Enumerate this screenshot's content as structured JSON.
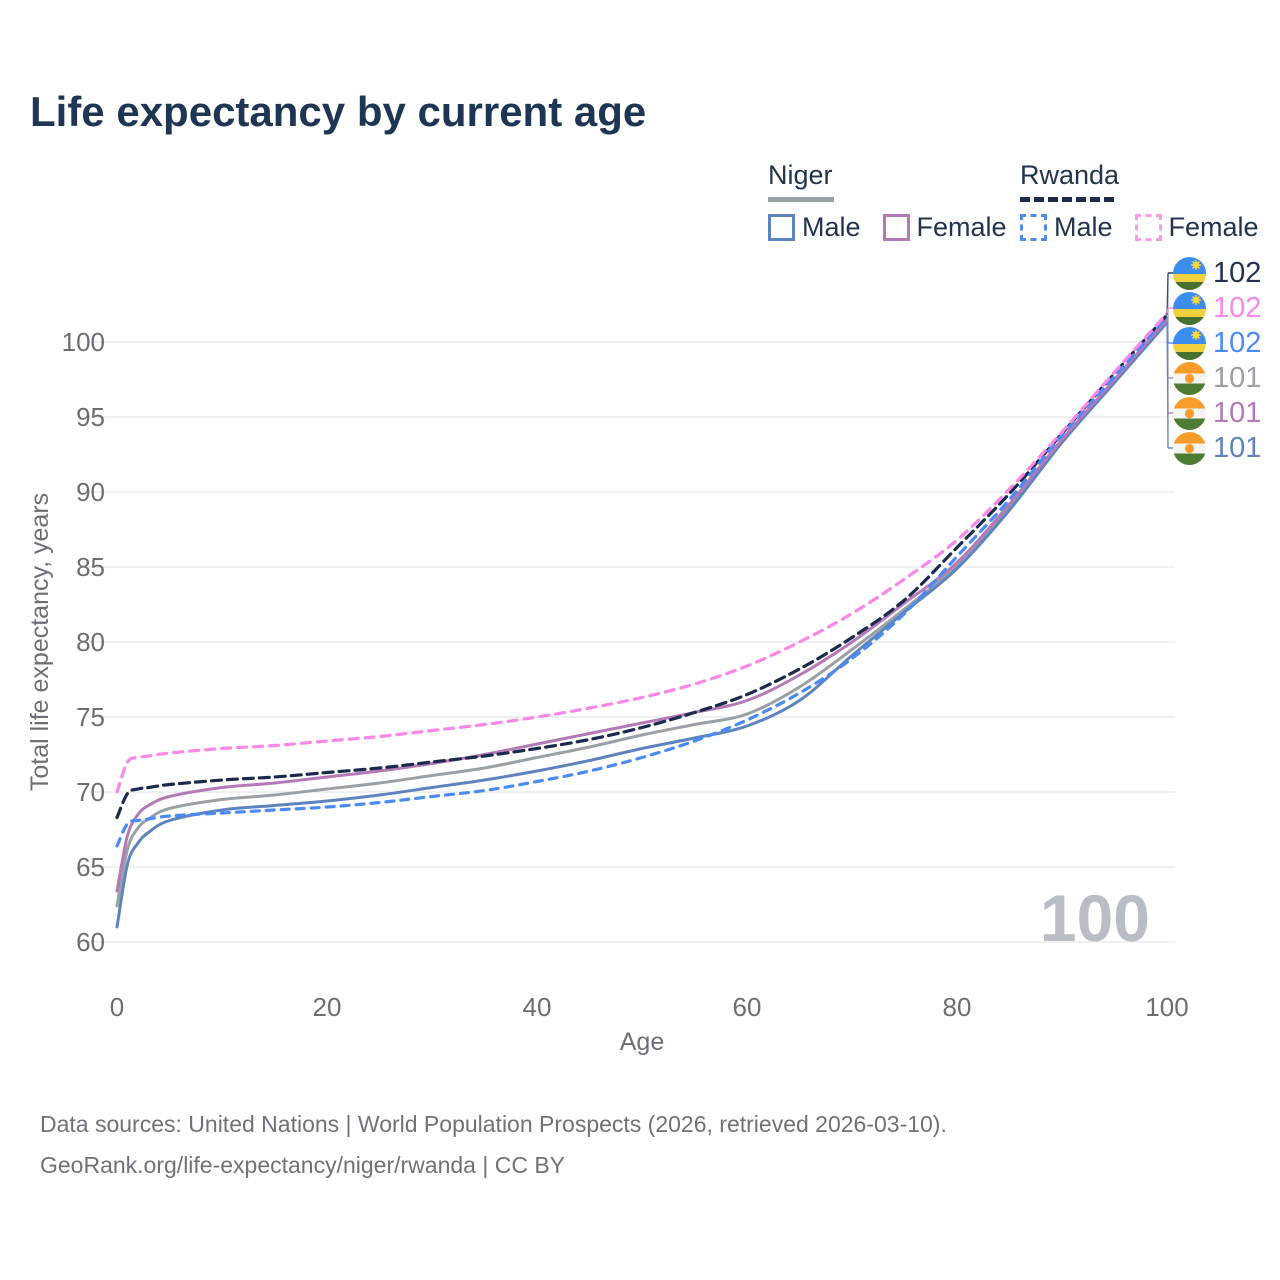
{
  "header": {
    "title": "Life expectancy by current age"
  },
  "legend": {
    "groups": [
      {
        "label": "Niger",
        "line_style": "solid",
        "underline_color": "#9aa0a6",
        "items": [
          {
            "label": "Male",
            "color": "#5e84c0",
            "dashed": false
          },
          {
            "label": "Female",
            "color": "#b47ab8",
            "dashed": false
          }
        ]
      },
      {
        "label": "Rwanda",
        "line_style": "dashed",
        "underline_color": "#1b2b4d",
        "items": [
          {
            "label": "Male",
            "color": "#4c8bf5",
            "dashed": true
          },
          {
            "label": "Female",
            "color": "#fb9ce9",
            "dashed": true
          }
        ]
      }
    ]
  },
  "chart_data": {
    "type": "line",
    "title": "Life expectancy by current age",
    "xlabel": "Age",
    "ylabel": "Total life expectancy, years",
    "xlim": [
      0,
      100
    ],
    "ylim": [
      60,
      100
    ],
    "x_ticks": [
      0,
      20,
      40,
      60,
      80,
      100
    ],
    "y_ticks": [
      60,
      65,
      70,
      75,
      80,
      85,
      90,
      95,
      100
    ],
    "grid": "horizontal-only",
    "legend_position": "top-right",
    "x": [
      0,
      1,
      2,
      3,
      5,
      10,
      15,
      20,
      25,
      30,
      35,
      40,
      45,
      50,
      55,
      60,
      65,
      70,
      75,
      80,
      85,
      90,
      95,
      100
    ],
    "series": [
      {
        "name": "Niger Male",
        "country": "Niger",
        "sex": "Male",
        "color": "#5e84c0",
        "dash": null,
        "values": [
          61.0,
          65.2,
          66.6,
          67.3,
          68.1,
          68.8,
          69.1,
          69.4,
          69.8,
          70.3,
          70.8,
          71.4,
          72.1,
          72.9,
          73.6,
          74.4,
          76.1,
          79.1,
          82.0,
          84.9,
          88.8,
          93.3,
          97.3,
          101.3
        ]
      },
      {
        "name": "Niger Female",
        "country": "Niger",
        "sex": "Female",
        "color": "#b47ab8",
        "dash": null,
        "values": [
          63.4,
          67.1,
          68.5,
          69.1,
          69.7,
          70.3,
          70.6,
          71.0,
          71.4,
          71.9,
          72.5,
          73.2,
          73.9,
          74.6,
          75.3,
          76.1,
          77.8,
          80.0,
          82.6,
          85.3,
          89.2,
          93.5,
          97.5,
          101.5
        ]
      },
      {
        "name": "Niger Total",
        "country": "Niger",
        "sex": "Both",
        "color": "#9aa0a6",
        "dash": null,
        "values": [
          62.4,
          66.2,
          67.6,
          68.2,
          68.9,
          69.5,
          69.8,
          70.2,
          70.6,
          71.1,
          71.6,
          72.3,
          73.0,
          73.8,
          74.5,
          75.2,
          77.0,
          79.5,
          82.2,
          85.1,
          89.0,
          93.4,
          97.4,
          101.4
        ]
      },
      {
        "name": "Rwanda Male",
        "country": "Rwanda",
        "sex": "Male",
        "color": "#4c8bf5",
        "dash": [
          8,
          7
        ],
        "values": [
          66.4,
          67.9,
          68.1,
          68.2,
          68.4,
          68.6,
          68.8,
          69.0,
          69.3,
          69.7,
          70.1,
          70.7,
          71.4,
          72.3,
          73.4,
          74.8,
          76.6,
          78.9,
          81.9,
          85.7,
          89.5,
          93.8,
          97.7,
          101.7
        ]
      },
      {
        "name": "Rwanda Female",
        "country": "Rwanda",
        "sex": "Female",
        "color": "#fb87e6",
        "dash": [
          9,
          7
        ],
        "values": [
          70.0,
          72.0,
          72.3,
          72.4,
          72.6,
          72.9,
          73.1,
          73.4,
          73.7,
          74.1,
          74.5,
          75.0,
          75.6,
          76.3,
          77.2,
          78.4,
          80.0,
          81.9,
          84.2,
          86.8,
          90.2,
          94.0,
          98.0,
          101.9
        ]
      },
      {
        "name": "Rwanda Total",
        "country": "Rwanda",
        "sex": "Both",
        "color": "#1b2b4d",
        "dash": [
          10,
          6
        ],
        "values": [
          68.3,
          69.9,
          70.2,
          70.3,
          70.5,
          70.8,
          71.0,
          71.3,
          71.6,
          72.0,
          72.4,
          72.9,
          73.5,
          74.3,
          75.3,
          76.5,
          78.2,
          80.3,
          82.8,
          86.3,
          89.9,
          93.9,
          97.9,
          101.8
        ]
      }
    ]
  },
  "end_labels": [
    {
      "country": "Rwanda",
      "flag": "rwanda",
      "value": "102",
      "color": "#22344e",
      "series": 5
    },
    {
      "country": "Rwanda",
      "flag": "rwanda",
      "value": "102",
      "color": "#fb87e6",
      "series": 4
    },
    {
      "country": "Rwanda",
      "flag": "rwanda",
      "value": "102",
      "color": "#4c8bf5",
      "series": 3
    },
    {
      "country": "Niger",
      "flag": "niger",
      "value": "101",
      "color": "#9aa0a6",
      "series": 2
    },
    {
      "country": "Niger",
      "flag": "niger",
      "value": "101",
      "color": "#b47ab8",
      "series": 1
    },
    {
      "country": "Niger",
      "flag": "niger",
      "value": "101",
      "color": "#5e84c0",
      "series": 0
    }
  ],
  "watermark": "100",
  "footer": {
    "line1": "Data sources: United Nations | World Population Prospects (2026, retrieved 2026-03-10).",
    "line2": "GeoRank.org/life-expectancy/niger/rwanda | CC BY"
  },
  "colors": {
    "title_text": "#1e3553",
    "legend_text": "#22344e",
    "tick_text": "#6b6f75",
    "axis_title_text": "#6b7077",
    "gridline": "#eaebed",
    "watermark": "#b9bdc6",
    "footer_text": "#6d7379"
  }
}
